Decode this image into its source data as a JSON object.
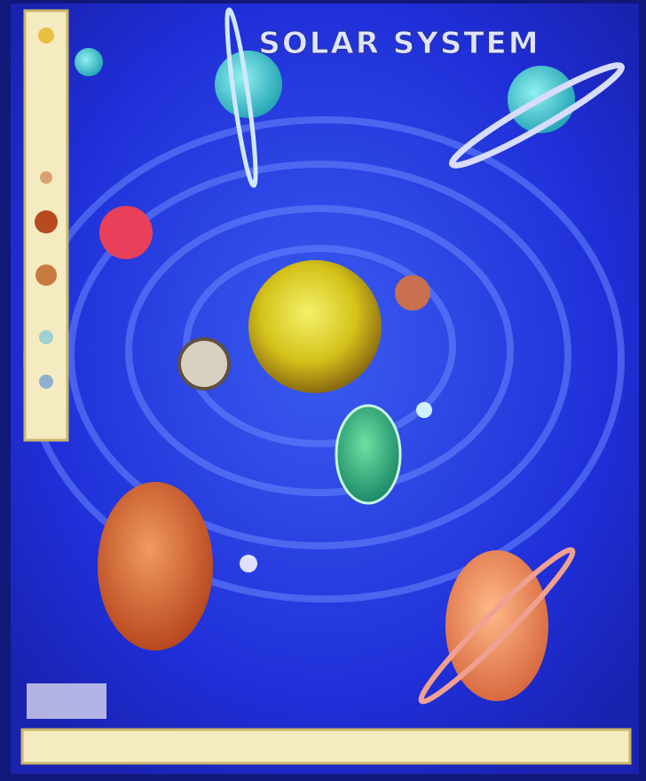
{
  "title": "SOLAR SYSTEM"
}
